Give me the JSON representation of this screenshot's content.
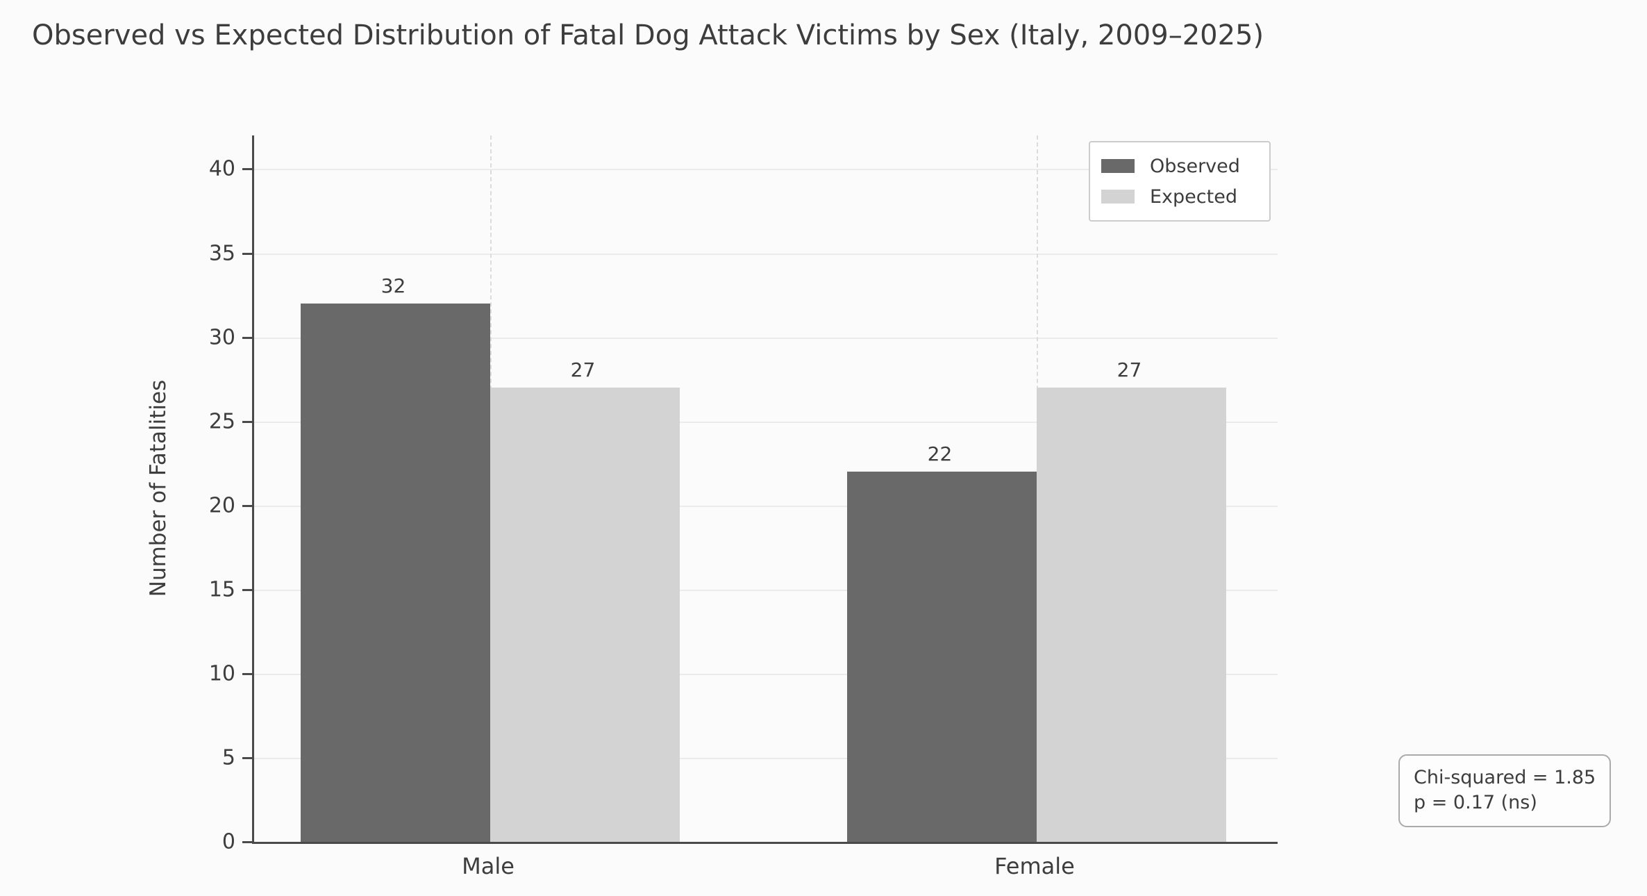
{
  "title": "Observed vs Expected Distribution of Fatal Dog Attack Victims by Sex (Italy, 2009–2025)",
  "chart_data": {
    "type": "bar",
    "categories": [
      "Male",
      "Female"
    ],
    "series": [
      {
        "name": "Observed",
        "values": [
          32,
          22
        ],
        "color": "#696969"
      },
      {
        "name": "Expected",
        "values": [
          27,
          27
        ],
        "color": "#d3d3d3"
      }
    ],
    "title": "Observed vs Expected Distribution of Fatal Dog Attack Victims by Sex (Italy, 2009–2025)",
    "xlabel": "",
    "ylabel": "Number of Fatalities",
    "ylim": [
      0,
      42
    ],
    "yticks": [
      0,
      5,
      10,
      15,
      20,
      25,
      30,
      35,
      40
    ],
    "bar_value_labels": true,
    "grid": true,
    "legend_position": "upper right"
  },
  "legend": {
    "items": [
      {
        "label": "Observed"
      },
      {
        "label": "Expected"
      }
    ]
  },
  "annotation": {
    "line1": "Chi-squared = 1.85",
    "line2": "p = 0.17 (ns)"
  },
  "colors": {
    "observed": "#696969",
    "expected": "#d3d3d3",
    "spine": "#4a4a4a",
    "text": "#3d3d3d",
    "grid": "#ebebeb"
  }
}
